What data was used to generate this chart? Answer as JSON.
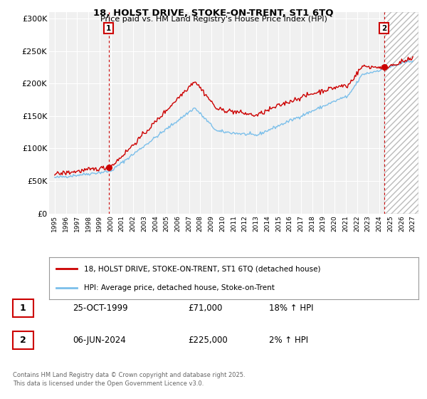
{
  "title": "18, HOLST DRIVE, STOKE-ON-TRENT, ST1 6TQ",
  "subtitle": "Price paid vs. HM Land Registry's House Price Index (HPI)",
  "ylabel_ticks": [
    "£0",
    "£50K",
    "£100K",
    "£150K",
    "£200K",
    "£250K",
    "£300K"
  ],
  "ytick_vals": [
    0,
    50000,
    100000,
    150000,
    200000,
    250000,
    300000
  ],
  "ylim": [
    0,
    310000
  ],
  "xlim_start": 1994.5,
  "xlim_end": 2027.5,
  "sale1_date": 1999.82,
  "sale1_price": 71000,
  "sale1_label": "1",
  "sale2_date": 2024.43,
  "sale2_price": 225000,
  "sale2_label": "2",
  "hpi_line_color": "#7bbfea",
  "price_line_color": "#cc0000",
  "dashed_line_color": "#cc0000",
  "legend_entries": [
    "18, HOLST DRIVE, STOKE-ON-TRENT, ST1 6TQ (detached house)",
    "HPI: Average price, detached house, Stoke-on-Trent"
  ],
  "table_entries": [
    {
      "label": "1",
      "date": "25-OCT-1999",
      "price": "£71,000",
      "hpi": "18% ↑ HPI"
    },
    {
      "label": "2",
      "date": "06-JUN-2024",
      "price": "£225,000",
      "hpi": "2% ↑ HPI"
    }
  ],
  "footer": "Contains HM Land Registry data © Crown copyright and database right 2025.\nThis data is licensed under the Open Government Licence v3.0.",
  "background_color": "#ffffff",
  "plot_bg_color": "#f0f0f0",
  "grid_color": "#ffffff",
  "label_box_color": "#cc0000",
  "hatch_color": "#cccccc"
}
